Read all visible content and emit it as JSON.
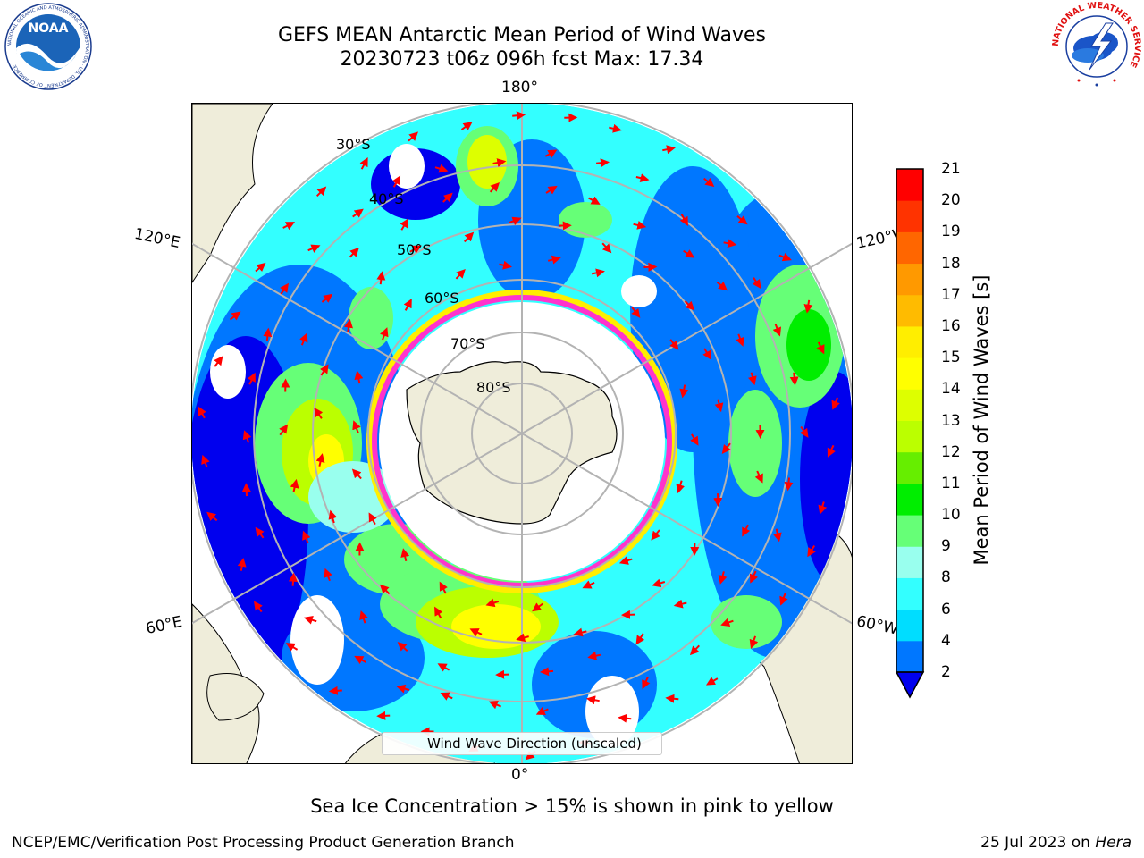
{
  "header": {
    "title_line1": "GEFS MEAN Antarctic Mean Period of Wind Waves",
    "title_line2": "20230723 t06z 096h fcst   Max: 17.34"
  },
  "logos": {
    "noaa_text": "NOAA",
    "noaa_ring_text": "NATIONAL OCEANIC AND ATMOSPHERIC ADMINISTRATION · U.S. DEPARTMENT OF COMMERCE",
    "nws_ring_text": "NATIONAL WEATHER SERVICE"
  },
  "map": {
    "projection": "south-polar-stereographic",
    "longitude_labels": {
      "top": "180°",
      "bottom": "0°",
      "upper_left": "120°E",
      "upper_right": "120°W",
      "lower_left": "60°E",
      "lower_right": "60°W"
    },
    "latitude_labels": [
      "30°S",
      "40°S",
      "50°S",
      "60°S",
      "70°S",
      "80°S"
    ],
    "legend_label": "Wind Wave Direction (unscaled)",
    "colors": {
      "land": "#efedda",
      "ocean_no_data": "#ffffff",
      "gridline": "#b3b3b3",
      "arrow": "#ff0000",
      "sea_ice_edge": "#ff33cc"
    }
  },
  "colorbar": {
    "label": "Mean Period of Wind Waves [s]",
    "ticks": [
      "2",
      "4",
      "6",
      "8",
      "9",
      "10",
      "11",
      "12",
      "13",
      "14",
      "15",
      "16",
      "17",
      "18",
      "19",
      "20",
      "21"
    ],
    "colors": [
      "#0077ff",
      "#00ddff",
      "#33ffff",
      "#99ffee",
      "#66ff77",
      "#00ee00",
      "#66ee00",
      "#bbff00",
      "#ddff00",
      "#ffff00",
      "#ffee00",
      "#ffbb00",
      "#ff9900",
      "#ff6600",
      "#ff3300",
      "#ff0000"
    ],
    "under_color": "#0000ee"
  },
  "notes": {
    "ice_note": "Sea Ice Concentration > 15% is shown in pink to yellow",
    "footer_left": "NCEP/EMC/Verification Post Processing Product Generation Branch",
    "footer_date": "25 Jul 2023 on ",
    "footer_machine": "Hera"
  }
}
